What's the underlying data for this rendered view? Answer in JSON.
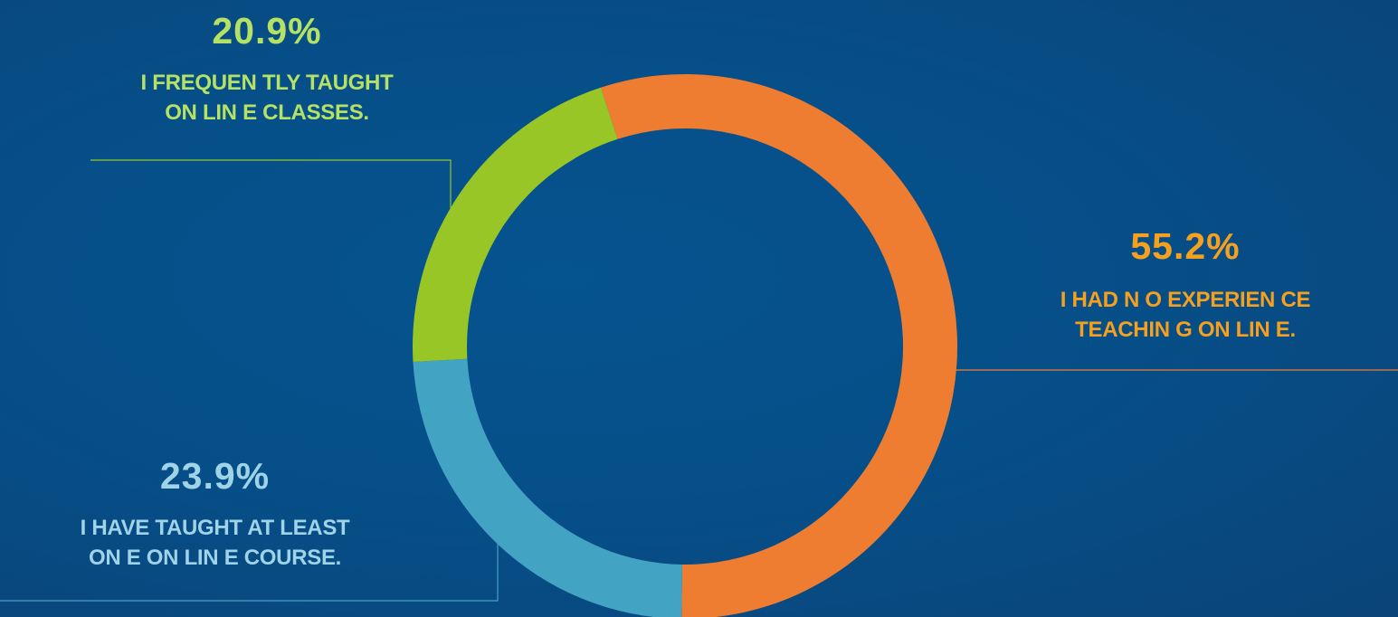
{
  "chart_data": {
    "type": "pie",
    "variant": "donut",
    "segments": [
      {
        "label": "I HAD NO EXPERIENCE TEACHING ONLINE.",
        "value": 55.2,
        "display": "55.2%",
        "color": "#ee7d31"
      },
      {
        "label": "I HAVE TAUGHT AT LEAST ONE ONLINE COURSE.",
        "value": 23.9,
        "display": "23.9%",
        "color": "#43a3c3"
      },
      {
        "label": "I FREQUENTLY TAUGHT ONLINE CLASSES.",
        "value": 20.9,
        "display": "20.9%",
        "color": "#97c626"
      }
    ],
    "start_angle_deg": -18,
    "direction": "clockwise"
  },
  "labels": {
    "frequent": {
      "pct": "20.9%",
      "line1": "I FREQUEN TLY TAUGHT",
      "line2": "ON LIN E CLASSES.",
      "color": "#b5e264"
    },
    "none": {
      "pct": "55.2%",
      "line1": "I HAD N O EXPERIEN CE",
      "line2": "TEACHIN G ON LIN E.",
      "color": "#f5a01e"
    },
    "least": {
      "pct": "23.9%",
      "line1": "I HAVE TAUGHT AT LEAST",
      "line2": "ON E ON LIN E COURSE.",
      "color": "#9fd3e7"
    }
  },
  "colors": {
    "background": "#05538f",
    "leader_frequent": "#97c626",
    "leader_none": "#ee7d31",
    "leader_least": "#43a3c3"
  }
}
